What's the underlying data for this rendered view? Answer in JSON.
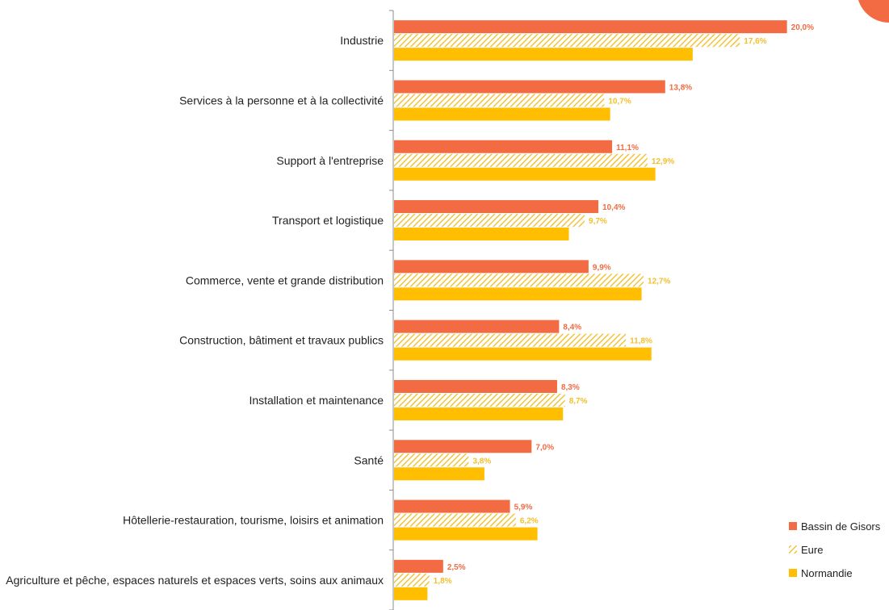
{
  "chart_data": {
    "type": "bar",
    "orientation": "horizontal",
    "categories": [
      "Industrie",
      "Services à la personne et à la collectivité",
      "Support à l'entreprise",
      "Transport et logistique",
      "Commerce, vente et grande distribution",
      "Construction, bâtiment et travaux publics",
      "Installation et maintenance",
      "Santé",
      "Hôtellerie-restauration, tourisme, loisirs et animation",
      "Agriculture et pêche, espaces naturels et espaces verts, soins aux animaux"
    ],
    "series": [
      {
        "name": "Bassin de Gisors",
        "color": "#f26b43",
        "pattern": "solid",
        "values": [
          20.0,
          13.8,
          11.1,
          10.4,
          9.9,
          8.4,
          8.3,
          7.0,
          5.9,
          2.5
        ],
        "labels": [
          "20,0%",
          "13,8%",
          "11,1%",
          "10,4%",
          "9,9%",
          "8,4%",
          "8,3%",
          "7,0%",
          "5,9%",
          "2,5%"
        ]
      },
      {
        "name": "Eure",
        "color": "#f2c02e",
        "pattern": "hatched",
        "values": [
          17.6,
          10.7,
          12.9,
          9.7,
          12.7,
          11.8,
          8.7,
          3.8,
          6.2,
          1.8
        ],
        "labels": [
          "17,6%",
          "10,7%",
          "12,9%",
          "9,7%",
          "12,7%",
          "11,8%",
          "8,7%",
          "3,8%",
          "6,2%",
          "1,8%"
        ]
      },
      {
        "name": "Normandie",
        "color": "#ffbf00",
        "pattern": "solid",
        "values": [
          15.2,
          11.0,
          13.3,
          8.9,
          12.6,
          13.1,
          8.6,
          4.6,
          7.3,
          1.7
        ],
        "labels": []
      }
    ],
    "xlim": [
      0,
      24
    ],
    "xlabel": "",
    "ylabel": "",
    "title": "",
    "grid": false,
    "legend_position": "bottom-right"
  },
  "accent": "#f26b43"
}
